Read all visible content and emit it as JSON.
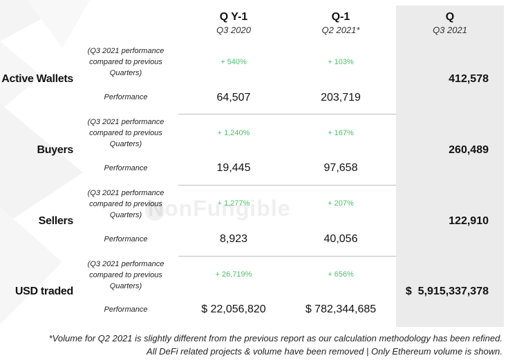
{
  "headers": {
    "qy1": {
      "title": "Q Y-1",
      "subtitle": "Q3 2020"
    },
    "q1": {
      "title": "Q-1",
      "subtitle": "Q2 2021*"
    },
    "q": {
      "title": "Q",
      "subtitle": "Q3 2021"
    }
  },
  "comparison_label": "(Q3 2021 performance compared to previous Quarters)",
  "performance_label": "Performance",
  "rows": [
    {
      "metric": "Active Wallets",
      "qy1_pct": "+ 540%",
      "q1_pct": "+ 103%",
      "qy1_val": "64,507",
      "q1_val": "203,719",
      "q_val": "412,578"
    },
    {
      "metric": "Buyers",
      "qy1_pct": "+ 1,240%",
      "q1_pct": "+ 167%",
      "qy1_val": "19,445",
      "q1_val": "97,658",
      "q_val": "260,489"
    },
    {
      "metric": "Sellers",
      "qy1_pct": "+ 1,277%",
      "q1_pct": "+ 207%",
      "qy1_val": "8,923",
      "q1_val": "40,056",
      "q_val": "122,910"
    },
    {
      "metric": "USD traded",
      "qy1_pct": "+ 26,719%",
      "q1_pct": "+ 656%",
      "qy1_val": "$ 22,056,820",
      "q1_val": "$ 782,344,685",
      "q_val": "$  5,915,337,378"
    }
  ],
  "watermark": "NonFungible",
  "footnote": {
    "line1": "*Volume for Q2 2021 is slightly different from the previous report as our calculation methodology has been refined.",
    "line2": "All DeFi related projects & volume have been removed | Only Ethereum volume is shown."
  },
  "colors": {
    "positive": "#4cbf6a",
    "q_column_bg": "#ebebeb"
  }
}
